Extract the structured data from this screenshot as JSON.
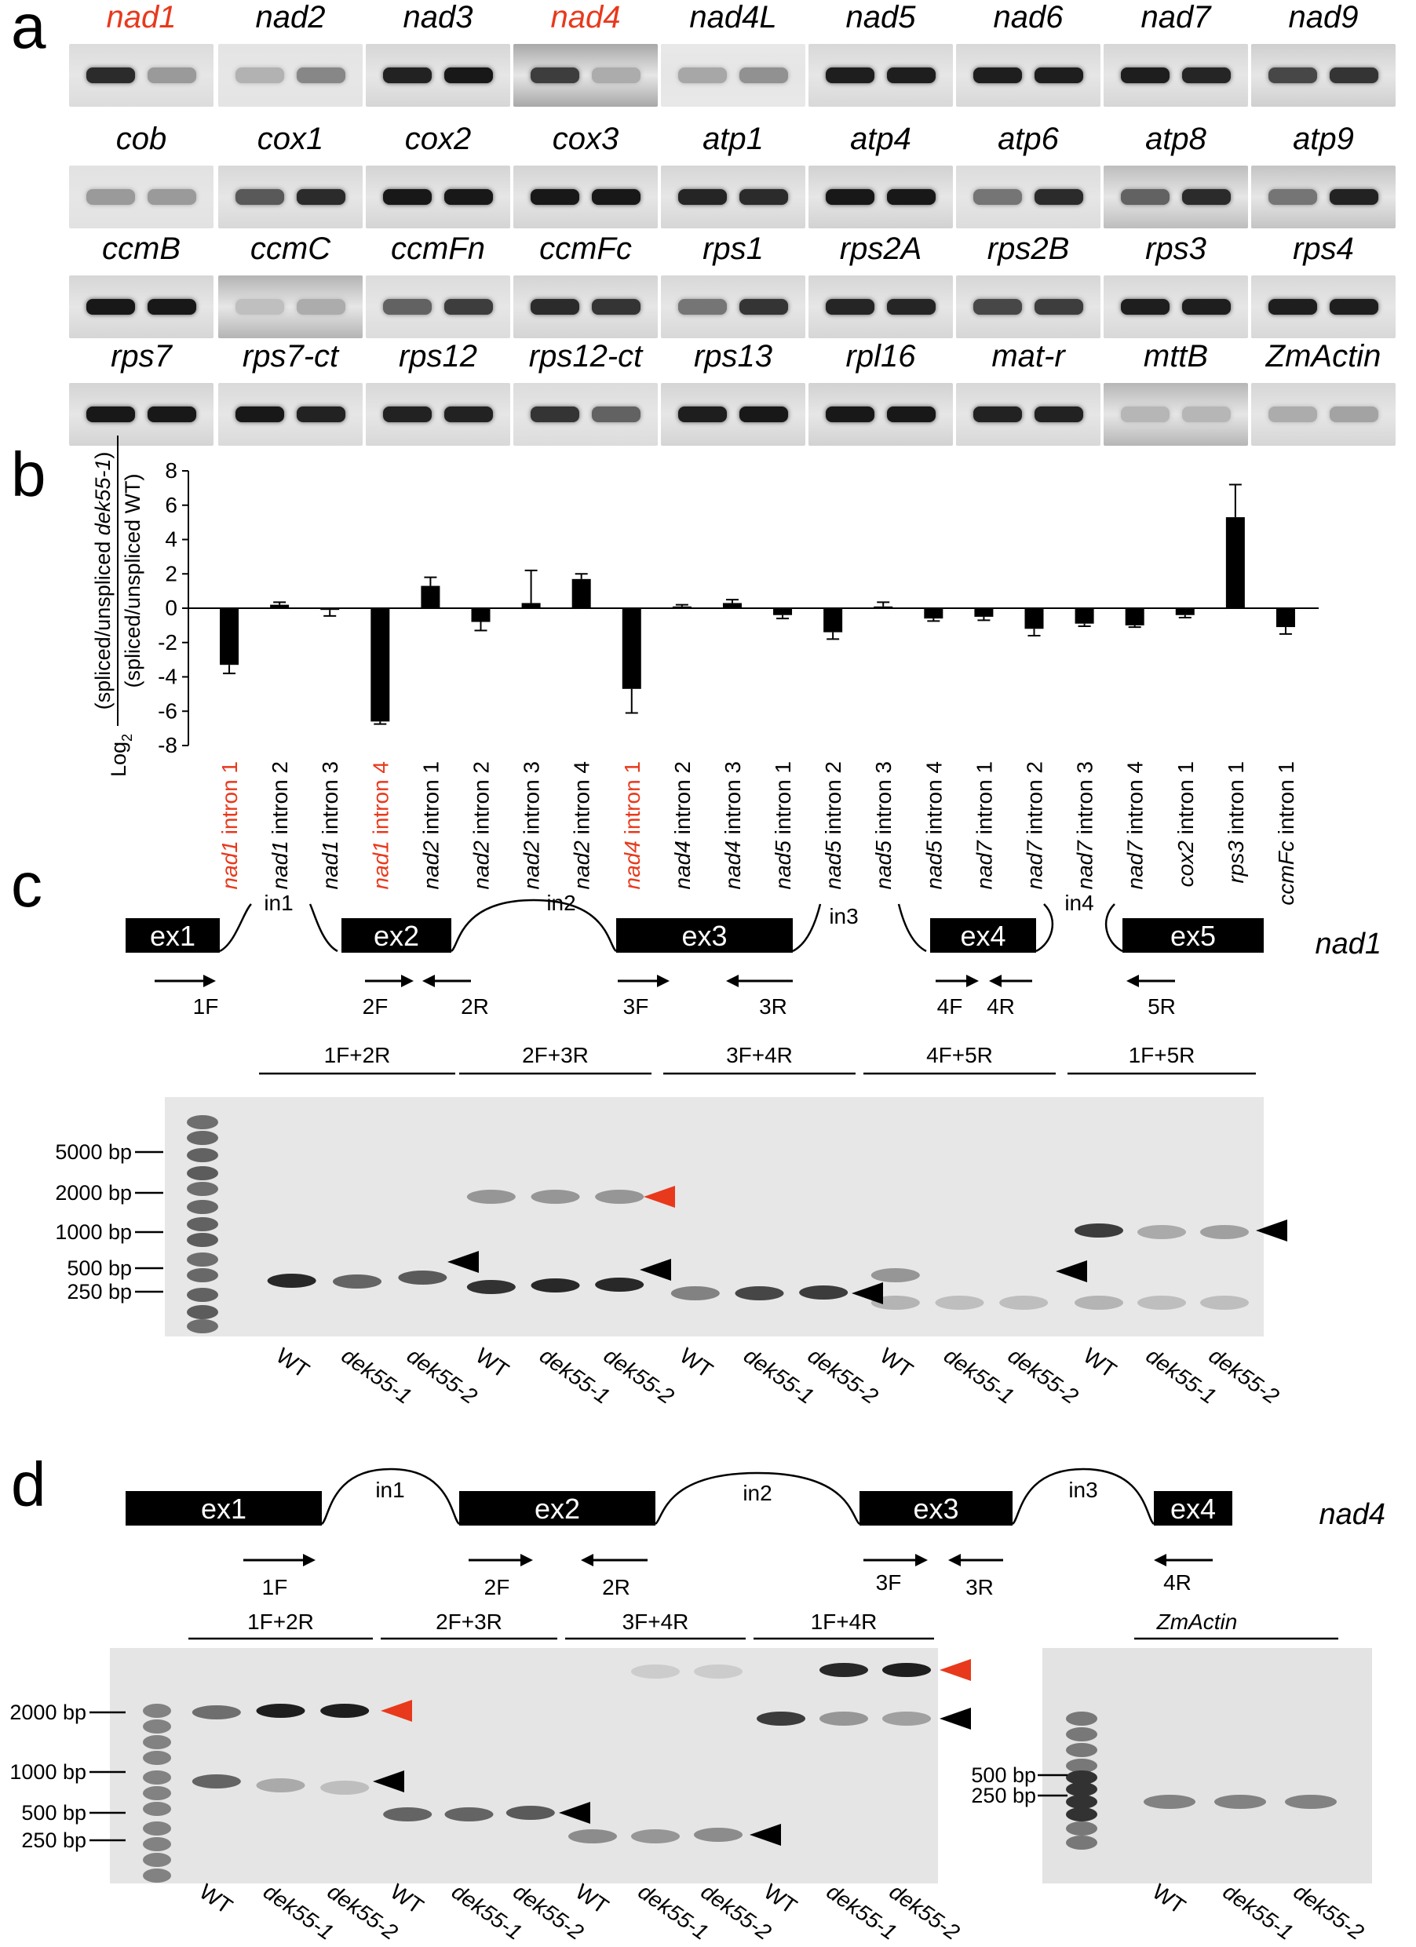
{
  "panels": {
    "a": "a",
    "b": "b",
    "c": "c",
    "d": "d"
  },
  "colors": {
    "highlight": "#e8391c",
    "black": "#000000"
  },
  "panel_a": {
    "rows": [
      [
        {
          "name": "nad1",
          "hl": true,
          "bg": "#dcdcdc",
          "b1": 0.85,
          "b2": 0.25
        },
        {
          "name": "nad2",
          "hl": false,
          "bg": "#e4e4e4",
          "b1": 0.12,
          "b2": 0.35
        },
        {
          "name": "nad3",
          "hl": false,
          "bg": "#d6d6d6",
          "b1": 0.9,
          "b2": 0.95
        },
        {
          "name": "nad4",
          "hl": true,
          "bg": "#a8a8a8",
          "b1": 0.75,
          "b2": 0.15
        },
        {
          "name": "nad4L",
          "hl": false,
          "bg": "#e8e8e8",
          "b1": 0.18,
          "b2": 0.3
        },
        {
          "name": "nad5",
          "hl": false,
          "bg": "#d8d8d8",
          "b1": 0.92,
          "b2": 0.92
        },
        {
          "name": "nad6",
          "hl": false,
          "bg": "#d8d8d8",
          "b1": 0.92,
          "b2": 0.92
        },
        {
          "name": "nad7",
          "hl": false,
          "bg": "#d6d6d6",
          "b1": 0.92,
          "b2": 0.88
        },
        {
          "name": "nad9",
          "hl": false,
          "bg": "#cfcfcf",
          "b1": 0.7,
          "b2": 0.8
        }
      ],
      [
        {
          "name": "cob",
          "hl": false,
          "bg": "#e2e2e2",
          "b1": 0.25,
          "b2": 0.25
        },
        {
          "name": "cox1",
          "hl": false,
          "bg": "#d8d8d8",
          "b1": 0.6,
          "b2": 0.85
        },
        {
          "name": "cox2",
          "hl": false,
          "bg": "#d4d4d4",
          "b1": 0.95,
          "b2": 0.95
        },
        {
          "name": "cox3",
          "hl": false,
          "bg": "#d4d4d4",
          "b1": 0.95,
          "b2": 0.95
        },
        {
          "name": "atp1",
          "hl": false,
          "bg": "#d6d6d6",
          "b1": 0.88,
          "b2": 0.85
        },
        {
          "name": "atp4",
          "hl": false,
          "bg": "#d2d2d2",
          "b1": 0.95,
          "b2": 0.95
        },
        {
          "name": "atp6",
          "hl": false,
          "bg": "#dcdcdc",
          "b1": 0.45,
          "b2": 0.85
        },
        {
          "name": "atp8",
          "hl": false,
          "bg": "#bdbdbd",
          "b1": 0.55,
          "b2": 0.85
        },
        {
          "name": "atp9",
          "hl": false,
          "bg": "#c4c4c4",
          "b1": 0.45,
          "b2": 0.9
        }
      ],
      [
        {
          "name": "ccmB",
          "hl": false,
          "bg": "#d6d6d6",
          "b1": 0.95,
          "b2": 0.95
        },
        {
          "name": "ccmC",
          "hl": false,
          "bg": "#b4b4b4",
          "b1": 0.05,
          "b2": 0.15
        },
        {
          "name": "ccmFn",
          "hl": false,
          "bg": "#dcdcdc",
          "b1": 0.55,
          "b2": 0.75
        },
        {
          "name": "ccmFc",
          "hl": false,
          "bg": "#d4d4d4",
          "b1": 0.85,
          "b2": 0.8
        },
        {
          "name": "rps1",
          "hl": false,
          "bg": "#d8d8d8",
          "b1": 0.45,
          "b2": 0.8
        },
        {
          "name": "rps2A",
          "hl": false,
          "bg": "#d6d6d6",
          "b1": 0.88,
          "b2": 0.88
        },
        {
          "name": "rps2B",
          "hl": false,
          "bg": "#d6d6d6",
          "b1": 0.7,
          "b2": 0.75
        },
        {
          "name": "rps3",
          "hl": false,
          "bg": "#d8d8d8",
          "b1": 0.92,
          "b2": 0.92
        },
        {
          "name": "rps4",
          "hl": false,
          "bg": "#d8d8d8",
          "b1": 0.92,
          "b2": 0.92
        }
      ],
      [
        {
          "name": "rps7",
          "hl": false,
          "bg": "#d4d4d4",
          "b1": 0.95,
          "b2": 0.95
        },
        {
          "name": "rps7-ct",
          "hl": false,
          "bg": "#dadada",
          "b1": 0.95,
          "b2": 0.9
        },
        {
          "name": "rps12",
          "hl": false,
          "bg": "#d8d8d8",
          "b1": 0.9,
          "b2": 0.9
        },
        {
          "name": "rps12-ct",
          "hl": false,
          "bg": "#dcdcdc",
          "b1": 0.8,
          "b2": 0.55
        },
        {
          "name": "rps13",
          "hl": false,
          "bg": "#d4d4d4",
          "b1": 0.92,
          "b2": 0.95
        },
        {
          "name": "rpl16",
          "hl": false,
          "bg": "#d2d2d2",
          "b1": 0.95,
          "b2": 0.95
        },
        {
          "name": "mat-r",
          "hl": false,
          "bg": "#d8d8d8",
          "b1": 0.9,
          "b2": 0.9
        },
        {
          "name": "mttB",
          "hl": false,
          "bg": "#b6b6b6",
          "b1": 0.1,
          "b2": 0.1
        },
        {
          "name": "ZmActin",
          "hl": false,
          "bg": "#d6d6d6",
          "b1": 0.15,
          "b2": 0.2
        }
      ]
    ]
  },
  "chart_data": {
    "type": "bar",
    "ylabel_pre": "Log",
    "ylabel_sub": "2",
    "ylabel_num_a": "(spliced/unspliced ",
    "ylabel_num_b": "dek55-1",
    "ylabel_num_c": ")",
    "ylabel_den": "(spliced/unspliced WT)",
    "ylim": [
      -8,
      8
    ],
    "yticks": [
      "8",
      "6",
      "4",
      "2",
      "0",
      "-2",
      "-4",
      "-6",
      "-8"
    ],
    "categories": [
      {
        "gene": "nad1",
        "rest": " intron 1",
        "hl": true
      },
      {
        "gene": "nad1",
        "rest": " intron 2",
        "hl": false
      },
      {
        "gene": "nad1",
        "rest": " intron 3",
        "hl": false
      },
      {
        "gene": "nad1",
        "rest": " intron 4",
        "hl": true
      },
      {
        "gene": "nad2",
        "rest": " intron 1",
        "hl": false
      },
      {
        "gene": "nad2",
        "rest": " intron 2",
        "hl": false
      },
      {
        "gene": "nad2",
        "rest": " intron 3",
        "hl": false
      },
      {
        "gene": "nad2",
        "rest": " intron 4",
        "hl": false
      },
      {
        "gene": "nad4",
        "rest": " intron 1",
        "hl": true
      },
      {
        "gene": "nad4",
        "rest": " intron 2",
        "hl": false
      },
      {
        "gene": "nad4",
        "rest": " intron 3",
        "hl": false
      },
      {
        "gene": "nad5",
        "rest": " intron 1",
        "hl": false
      },
      {
        "gene": "nad5",
        "rest": " intron 2",
        "hl": false
      },
      {
        "gene": "nad5",
        "rest": " intron 3",
        "hl": false
      },
      {
        "gene": "nad5",
        "rest": " intron 4",
        "hl": false
      },
      {
        "gene": "nad7",
        "rest": " intron 1",
        "hl": false
      },
      {
        "gene": "nad7",
        "rest": " intron 2",
        "hl": false
      },
      {
        "gene": "nad7",
        "rest": " intron 3",
        "hl": false
      },
      {
        "gene": "nad7",
        "rest": " intron 4",
        "hl": false
      },
      {
        "gene": "cox2",
        "rest": " intron 1",
        "hl": false
      },
      {
        "gene": "rps3",
        "rest": " intron 1",
        "hl": false
      },
      {
        "gene": "ccmFc",
        "rest": " intron 1",
        "hl": false
      }
    ],
    "values": [
      -3.3,
      0.2,
      -0.1,
      -6.6,
      1.3,
      -0.8,
      0.3,
      1.7,
      -4.7,
      0.1,
      0.3,
      -0.4,
      -1.4,
      0.1,
      -0.6,
      -0.5,
      -1.2,
      -0.9,
      -1.0,
      -0.4,
      5.3,
      -1.1
    ],
    "errors": [
      0.5,
      0.15,
      0.35,
      0.15,
      0.5,
      0.5,
      1.9,
      0.3,
      1.4,
      0.1,
      0.2,
      0.2,
      0.4,
      0.25,
      0.15,
      0.2,
      0.4,
      0.15,
      0.1,
      0.15,
      1.9,
      0.4
    ]
  },
  "panel_c": {
    "gene": "nad1",
    "exons": [
      "ex1",
      "ex2",
      "ex3",
      "ex4",
      "ex5"
    ],
    "introns": [
      "in1",
      "in2",
      "in3",
      "in4"
    ],
    "primers": [
      "1F",
      "2F",
      "2R",
      "3F",
      "3R",
      "4F",
      "4R",
      "5R"
    ],
    "groups": [
      "1F+2R",
      "2F+3R",
      "3F+4R",
      "4F+5R",
      "1F+5R"
    ],
    "ladder": [
      "5000 bp",
      "2000 bp",
      "1000 bp",
      "500 bp",
      "250 bp"
    ],
    "lanes": [
      "WT",
      "dek55-1",
      "dek55-2",
      "WT",
      "dek55-1",
      "dek55-2",
      "WT",
      "dek55-1",
      "dek55-2",
      "WT",
      "dek55-1",
      "dek55-2",
      "WT",
      "dek55-1",
      "dek55-2"
    ]
  },
  "panel_d": {
    "gene": "nad4",
    "exons": [
      "ex1",
      "ex2",
      "ex3",
      "ex4"
    ],
    "introns": [
      "in1",
      "in2",
      "in3"
    ],
    "primers": [
      "1F",
      "2F",
      "2R",
      "3F",
      "3R",
      "4R"
    ],
    "groups": [
      "1F+2R",
      "2F+3R",
      "3F+4R",
      "1F+4R"
    ],
    "ladder": [
      "2000 bp",
      "1000 bp",
      "500 bp",
      "250 bp"
    ],
    "lanes": [
      "WT",
      "dek55-1",
      "dek55-2",
      "WT",
      "dek55-1",
      "dek55-2",
      "WT",
      "dek55-1",
      "dek55-2",
      "WT",
      "dek55-1",
      "dek55-2"
    ],
    "actin_title": "ZmActin",
    "actin_ladder": [
      "500 bp",
      "250 bp"
    ],
    "actin_lanes": [
      "WT",
      "dek55-1",
      "dek55-2"
    ]
  }
}
